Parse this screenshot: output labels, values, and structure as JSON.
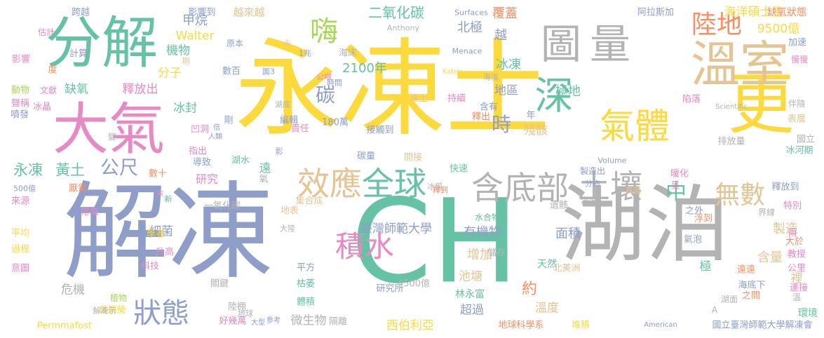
{
  "colors": {
    "yellow": "#fcd93d",
    "blue": "#8e9ec9",
    "green": "#66c2a5",
    "orange": "#fc8d62",
    "pink": "#e78ac3",
    "gray": "#b3b3b3",
    "tan": "#e5c494",
    "lime": "#a6d854"
  },
  "words": [
    {
      "t": "永凍土",
      "c": "yellow"
    },
    {
      "t": "解凍",
      "c": "blue"
    },
    {
      "t": "CH",
      "c": "green"
    },
    {
      "t": "湖泊",
      "c": "gray"
    },
    {
      "t": "更",
      "c": "yellow"
    },
    {
      "t": "溫室",
      "c": "tan"
    },
    {
      "t": "分解",
      "c": "green"
    },
    {
      "t": "大氣",
      "c": "pink"
    },
    {
      "t": "圖",
      "c": "gray"
    },
    {
      "t": "量",
      "c": "gray"
    },
    {
      "t": "深",
      "c": "green"
    },
    {
      "t": "氣體",
      "c": "yellow"
    },
    {
      "t": "土壤",
      "c": "gray"
    },
    {
      "t": "效應",
      "c": "tan"
    },
    {
      "t": "全球",
      "c": "green"
    },
    {
      "t": "含",
      "c": "gray"
    },
    {
      "t": "底部",
      "c": "gray"
    },
    {
      "t": "積水",
      "c": "pink"
    },
    {
      "t": "狀態",
      "c": "blue"
    },
    {
      "t": "嗨",
      "c": "lime"
    },
    {
      "t": "陸地",
      "c": "orange"
    },
    {
      "t": "無數",
      "c": "tan"
    },
    {
      "t": "中",
      "c": "green"
    },
    {
      "t": "碳",
      "c": "blue"
    },
    {
      "t": "時",
      "c": "blue"
    },
    {
      "t": "公尺",
      "c": "blue"
    },
    {
      "t": "永凍",
      "c": "green"
    },
    {
      "t": "黃土",
      "c": "green"
    },
    {
      "t": "二氧化碳",
      "c": "green"
    },
    {
      "t": "甲烷",
      "c": "blue"
    },
    {
      "t": "北極",
      "c": "blue"
    },
    {
      "t": "覆蓋",
      "c": "orange"
    },
    {
      "t": "海洋碩士生",
      "c": "yellow"
    },
    {
      "t": "9500億",
      "c": "yellow"
    },
    {
      "t": "越來越",
      "c": "tan"
    },
    {
      "t": "影響到",
      "c": "blue"
    },
    {
      "t": "跨越",
      "c": "blue"
    },
    {
      "t": "缺氧狀態",
      "c": "orange"
    },
    {
      "t": "阿拉斯加",
      "c": "blue"
    },
    {
      "t": "Walter",
      "c": "yellow"
    },
    {
      "t": "機物",
      "c": "green"
    },
    {
      "t": "分子",
      "c": "yellow"
    },
    {
      "t": "2100年",
      "c": "green"
    },
    {
      "t": "釋放出",
      "c": "pink"
    },
    {
      "t": "缺氧",
      "c": "green"
    },
    {
      "t": "冰封",
      "c": "green"
    },
    {
      "t": "冰凍",
      "c": "green"
    },
    {
      "t": "地區",
      "c": "blue"
    },
    {
      "t": "極地",
      "c": "green"
    },
    {
      "t": "殘骸",
      "c": "tan"
    },
    {
      "t": "越",
      "c": "blue"
    },
    {
      "t": "研究",
      "c": "pink"
    },
    {
      "t": "遠",
      "c": "green"
    },
    {
      "t": "有機物",
      "c": "blue"
    },
    {
      "t": "面積",
      "c": "blue"
    },
    {
      "t": "製造",
      "c": "tan"
    },
    {
      "t": "含量",
      "c": "tan"
    },
    {
      "t": "臺灣師範大學",
      "c": "blue"
    },
    {
      "t": "增加",
      "c": "tan"
    },
    {
      "t": "池塘",
      "c": "tan"
    },
    {
      "t": "約",
      "c": "orange"
    },
    {
      "t": "溫度",
      "c": "tan"
    },
    {
      "t": "林永富",
      "c": "green"
    },
    {
      "t": "研究所",
      "c": "blue"
    },
    {
      "t": "西伯利亞",
      "c": "yellow"
    },
    {
      "t": "超過",
      "c": "blue"
    },
    {
      "t": "微生物",
      "c": "gray"
    },
    {
      "t": "細菌",
      "c": "blue"
    },
    {
      "t": "危機",
      "c": "gray"
    },
    {
      "t": "極",
      "c": "green"
    },
    {
      "t": "裡",
      "c": "tan"
    },
    {
      "t": "環境",
      "c": "green"
    },
    {
      "t": "國立臺灣師範大學解凍會",
      "c": "blue"
    },
    {
      "t": "地球科學系",
      "c": "orange"
    },
    {
      "t": "堆積",
      "c": "yellow"
    },
    {
      "t": "Permmafost",
      "c": "yellow"
    },
    {
      "t": "吳朝榮",
      "c": "yellow"
    },
    {
      "t": "好幾萬",
      "c": "pink"
    },
    {
      "t": "大型",
      "c": "blue"
    },
    {
      "t": "參考",
      "c": "blue"
    },
    {
      "t": "隔離",
      "c": "gray"
    },
    {
      "t": "American",
      "c": "blue"
    },
    {
      "t": "天然",
      "c": "green"
    },
    {
      "t": "北美洲",
      "c": "tan"
    },
    {
      "t": "4500億",
      "c": "gray"
    },
    {
      "t": "平方",
      "c": "blue"
    },
    {
      "t": "體積",
      "c": "green"
    },
    {
      "t": "枯萎",
      "c": "green"
    },
    {
      "t": "冰河期",
      "c": "green"
    },
    {
      "t": "國立",
      "c": "gray"
    },
    {
      "t": "排放量",
      "c": "gray"
    },
    {
      "t": "陷落",
      "c": "pink"
    },
    {
      "t": "表層",
      "c": "tan"
    },
    {
      "t": "伴隨",
      "c": "gray"
    },
    {
      "t": "Scientific",
      "c": "gray"
    },
    {
      "t": "加速",
      "c": "blue"
    },
    {
      "t": "慢慢",
      "c": "pink"
    },
    {
      "t": "Surfaces",
      "c": "blue"
    },
    {
      "t": "Anthony",
      "c": "gray"
    },
    {
      "t": "Methane",
      "c": "yellow"
    },
    {
      "t": "Menace",
      "c": "blue"
    },
    {
      "t": "Katey",
      "c": "yellow"
    },
    {
      "t": "估計",
      "c": "pink"
    },
    {
      "t": "影響",
      "c": "pink"
    },
    {
      "t": "計算",
      "c": "blue"
    },
    {
      "t": "度",
      "c": "orange"
    },
    {
      "t": "動物",
      "c": "lime"
    },
    {
      "t": "文獻",
      "c": "pink"
    },
    {
      "t": "聲稱",
      "c": "pink"
    },
    {
      "t": "冰晶",
      "c": "pink"
    },
    {
      "t": "噴發",
      "c": "blue"
    },
    {
      "t": "變",
      "c": "gray"
    },
    {
      "t": "數十",
      "c": "orange"
    },
    {
      "t": "500億",
      "c": "blue"
    },
    {
      "t": "來源",
      "c": "pink"
    },
    {
      "t": "厭氧",
      "c": "orange"
    },
    {
      "t": "帶來",
      "c": "pink"
    },
    {
      "t": "平均",
      "c": "yellow"
    },
    {
      "t": "過程",
      "c": "yellow"
    },
    {
      "t": "意圖",
      "c": "pink"
    },
    {
      "t": "植物",
      "c": "lime"
    },
    {
      "t": "解凍示",
      "c": "gray"
    },
    {
      "t": "升高",
      "c": "pink"
    },
    {
      "t": "科技",
      "c": "pink"
    },
    {
      "t": "學者",
      "c": "yellow"
    },
    {
      "t": "一氧化碳",
      "c": "gray"
    },
    {
      "t": "凹洞",
      "c": "pink"
    },
    {
      "t": "人類",
      "c": "blue"
    },
    {
      "t": "倍",
      "c": "blue"
    },
    {
      "t": "指出",
      "c": "pink"
    },
    {
      "t": "導致",
      "c": "blue"
    },
    {
      "t": "湖水",
      "c": "green"
    },
    {
      "t": "氧",
      "c": "gray"
    },
    {
      "t": "剛",
      "c": "blue"
    },
    {
      "t": "影",
      "c": "blue"
    },
    {
      "t": "冰楔",
      "c": "gray"
    },
    {
      "t": "釋到",
      "c": "orange"
    },
    {
      "t": "快速",
      "c": "green"
    },
    {
      "t": "接觸到",
      "c": "blue"
    },
    {
      "t": "碳量",
      "c": "blue"
    },
    {
      "t": "間接",
      "c": "tan"
    },
    {
      "t": "180萬",
      "c": "blue"
    },
    {
      "t": "責任",
      "c": "pink"
    },
    {
      "t": "編輯",
      "c": "blue"
    },
    {
      "t": "湖底",
      "c": "gray"
    },
    {
      "t": "凍土",
      "c": "tan"
    },
    {
      "t": "持續",
      "c": "pink"
    },
    {
      "t": "含有",
      "c": "blue"
    },
    {
      "t": "釋出",
      "c": "orange"
    },
    {
      "t": "年",
      "c": "blue"
    },
    {
      "t": "海溫",
      "c": "gray"
    },
    {
      "t": "海床",
      "c": "gray"
    },
    {
      "t": "公噸",
      "c": "pink"
    },
    {
      "t": "時間",
      "c": "blue"
    },
    {
      "t": "數百",
      "c": "blue"
    },
    {
      "t": "圖3",
      "c": "blue"
    },
    {
      "t": "1兆",
      "c": "blue"
    },
    {
      "t": "原本",
      "c": "blue"
    },
    {
      "t": "期",
      "c": "tan"
    },
    {
      "t": "永",
      "c": "tan"
    },
    {
      "t": "集合成",
      "c": "tan"
    },
    {
      "t": "地表",
      "c": "tan"
    },
    {
      "t": "大陸",
      "c": "gray"
    },
    {
      "t": "新",
      "c": "green"
    },
    {
      "t": "末",
      "c": "pink"
    },
    {
      "t": "關鍵",
      "c": "gray"
    },
    {
      "t": "陸棚",
      "c": "gray"
    },
    {
      "t": "地球",
      "c": "gray"
    },
    {
      "t": "水合物",
      "c": "green"
    },
    {
      "t": "儲存",
      "c": "gray"
    },
    {
      "t": "遺骸",
      "c": "gray"
    },
    {
      "t": "製造出",
      "c": "blue"
    },
    {
      "t": "分佈",
      "c": "blue"
    },
    {
      "t": "真菌",
      "c": "tan"
    },
    {
      "t": "海面",
      "c": "gray"
    },
    {
      "t": "暖化",
      "c": "pink"
    },
    {
      "t": "Volume",
      "c": "blue"
    },
    {
      "t": "呈",
      "c": "pink"
    },
    {
      "t": "之外",
      "c": "blue"
    },
    {
      "t": "浮到",
      "c": "orange"
    },
    {
      "t": "釋放到",
      "c": "blue"
    },
    {
      "t": "特別",
      "c": "pink"
    },
    {
      "t": "界線",
      "c": "gray"
    },
    {
      "t": "兩",
      "c": "pink"
    },
    {
      "t": "氣泡",
      "c": "blue"
    },
    {
      "t": "大於",
      "c": "orange"
    },
    {
      "t": "教授",
      "c": "pink"
    },
    {
      "t": "公里",
      "c": "pink"
    },
    {
      "t": "遠遠",
      "c": "orange"
    },
    {
      "t": "連接",
      "c": "pink"
    },
    {
      "t": "海底下",
      "c": "blue"
    },
    {
      "t": "之間",
      "c": "orange"
    },
    {
      "t": "湖面",
      "c": "gray"
    },
    {
      "t": "溫",
      "c": "gray"
    },
    {
      "t": "A",
      "c": "gray"
    }
  ]
}
